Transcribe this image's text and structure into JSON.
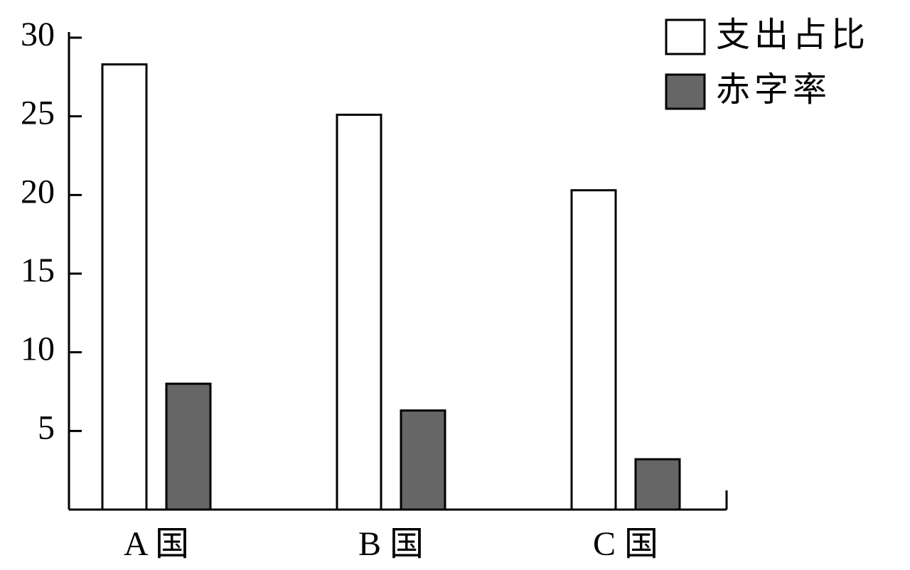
{
  "chart_data": {
    "type": "bar",
    "categories": [
      "A 国",
      "B 国",
      "C 国"
    ],
    "series": [
      {
        "name": "支出占比",
        "color": "#ffffff",
        "values": [
          28.3,
          25.1,
          20.3
        ]
      },
      {
        "name": "赤字率",
        "color": "#666666",
        "values": [
          8.0,
          6.3,
          3.2
        ]
      }
    ],
    "ylim": [
      0,
      30
    ],
    "yticks": [
      5,
      10,
      15,
      20,
      25,
      30
    ],
    "legend": "upper right",
    "grid": false
  }
}
